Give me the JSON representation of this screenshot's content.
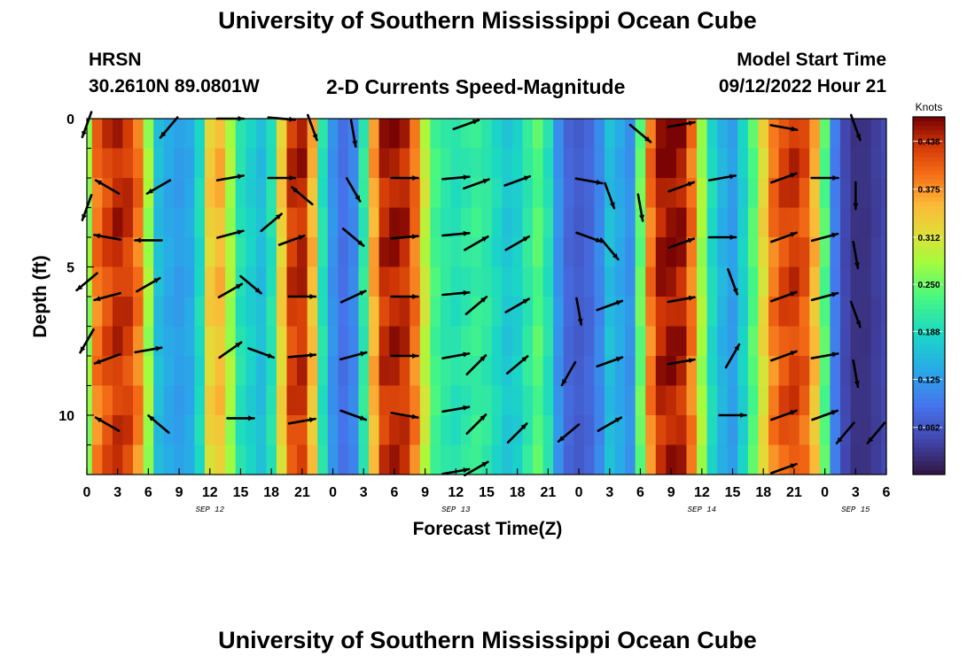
{
  "title": "University of Southern Mississippi Ocean Cube",
  "station": "HRSN",
  "location": "30.2610N  89.0801W",
  "subtitle": "2-D Currents Speed-Magnitude",
  "model_start_label": "Model Start Time",
  "model_start_value": "09/12/2022 Hour 21",
  "footer_title": "University of Southern Mississippi Ocean Cube",
  "chart_data": {
    "type": "heatmap",
    "title": "2-D Currents Speed-Magnitude",
    "xlabel": "Forecast Time(Z)",
    "ylabel": "Depth (ft)",
    "x_tick_labels": [
      "0",
      "3",
      "6",
      "9",
      "12",
      "15",
      "18",
      "21",
      "0",
      "3",
      "6",
      "9",
      "12",
      "15",
      "18",
      "21",
      "0",
      "3",
      "6",
      "9",
      "12",
      "15",
      "18",
      "21",
      "0",
      "3",
      "6"
    ],
    "date_labels": [
      {
        "label": "SEP 12",
        "hour": 12
      },
      {
        "label": "SEP 13",
        "hour": 36
      },
      {
        "label": "SEP 14",
        "hour": 60
      },
      {
        "label": "SEP 15",
        "hour": 75
      }
    ],
    "x_range_hours": [
      0,
      78
    ],
    "y_ticks": [
      "0",
      "5",
      "10"
    ],
    "y_range_ft": [
      0,
      12
    ],
    "colorbar": {
      "units": "Knots",
      "range": [
        0,
        0.47
      ],
      "tick_labels": [
        "0.438",
        "0.375",
        "0.312",
        "0.250",
        "0.188",
        "0.125",
        "0.062"
      ],
      "tick_values": [
        0.438,
        0.375,
        0.312,
        0.25,
        0.188,
        0.125,
        0.062
      ]
    },
    "speed_by_time_knots": [
      [
        0,
        0.27
      ],
      [
        1,
        0.4
      ],
      [
        2,
        0.43
      ],
      [
        3,
        0.45
      ],
      [
        4,
        0.44
      ],
      [
        5,
        0.4
      ],
      [
        6,
        0.28
      ],
      [
        7,
        0.16
      ],
      [
        8,
        0.14
      ],
      [
        9,
        0.13
      ],
      [
        10,
        0.14
      ],
      [
        11,
        0.19
      ],
      [
        12,
        0.34
      ],
      [
        13,
        0.36
      ],
      [
        14,
        0.28
      ],
      [
        15,
        0.2
      ],
      [
        16,
        0.18
      ],
      [
        17,
        0.16
      ],
      [
        18,
        0.2
      ],
      [
        19,
        0.34
      ],
      [
        20,
        0.44
      ],
      [
        21,
        0.45
      ],
      [
        22,
        0.36
      ],
      [
        23,
        0.2
      ],
      [
        24,
        0.12
      ],
      [
        25,
        0.09
      ],
      [
        26,
        0.11
      ],
      [
        27,
        0.21
      ],
      [
        28,
        0.37
      ],
      [
        29,
        0.45
      ],
      [
        30,
        0.46
      ],
      [
        31,
        0.45
      ],
      [
        32,
        0.4
      ],
      [
        33,
        0.3
      ],
      [
        34,
        0.23
      ],
      [
        35,
        0.21
      ],
      [
        36,
        0.2
      ],
      [
        37,
        0.21
      ],
      [
        38,
        0.22
      ],
      [
        39,
        0.21
      ],
      [
        40,
        0.19
      ],
      [
        41,
        0.17
      ],
      [
        42,
        0.18
      ],
      [
        43,
        0.21
      ],
      [
        44,
        0.24
      ],
      [
        45,
        0.2
      ],
      [
        46,
        0.12
      ],
      [
        47,
        0.08
      ],
      [
        48,
        0.07
      ],
      [
        49,
        0.08
      ],
      [
        50,
        0.11
      ],
      [
        51,
        0.16
      ],
      [
        52,
        0.14
      ],
      [
        53,
        0.12
      ],
      [
        54,
        0.25
      ],
      [
        55,
        0.4
      ],
      [
        56,
        0.46
      ],
      [
        57,
        0.47
      ],
      [
        58,
        0.46
      ],
      [
        59,
        0.4
      ],
      [
        60,
        0.28
      ],
      [
        61,
        0.19
      ],
      [
        62,
        0.15
      ],
      [
        63,
        0.13
      ],
      [
        64,
        0.18
      ],
      [
        65,
        0.24
      ],
      [
        66,
        0.33
      ],
      [
        67,
        0.4
      ],
      [
        68,
        0.43
      ],
      [
        69,
        0.44
      ],
      [
        70,
        0.42
      ],
      [
        71,
        0.36
      ],
      [
        72,
        0.24
      ],
      [
        73,
        0.1
      ],
      [
        74,
        0.05
      ],
      [
        75,
        0.03
      ],
      [
        76,
        0.03
      ],
      [
        77,
        0.04
      ],
      [
        78,
        0.05
      ]
    ],
    "vectors": [
      {
        "hour": 0,
        "depth": 0.2,
        "angle": 250
      },
      {
        "hour": 2,
        "depth": 2.3,
        "angle": 150
      },
      {
        "hour": 2,
        "depth": 4.0,
        "angle": 170
      },
      {
        "hour": 2,
        "depth": 6.0,
        "angle": 195
      },
      {
        "hour": 2,
        "depth": 8.1,
        "angle": 200
      },
      {
        "hour": 2,
        "depth": 10.3,
        "angle": 150
      },
      {
        "hour": 0,
        "depth": 3.0,
        "angle": 250
      },
      {
        "hour": 0,
        "depth": 5.5,
        "angle": 220
      },
      {
        "hour": 0,
        "depth": 7.5,
        "angle": 240
      },
      {
        "hour": 8,
        "depth": 0.3,
        "angle": 230
      },
      {
        "hour": 7,
        "depth": 2.3,
        "angle": 210
      },
      {
        "hour": 6,
        "depth": 4.1,
        "angle": 180
      },
      {
        "hour": 6,
        "depth": 5.6,
        "angle": 30
      },
      {
        "hour": 6,
        "depth": 7.8,
        "angle": 10
      },
      {
        "hour": 7,
        "depth": 10.3,
        "angle": 140
      },
      {
        "hour": 14,
        "depth": 0.0,
        "angle": 0
      },
      {
        "hour": 14,
        "depth": 2.0,
        "angle": 10
      },
      {
        "hour": 14,
        "depth": 3.9,
        "angle": 15
      },
      {
        "hour": 14,
        "depth": 5.8,
        "angle": 30
      },
      {
        "hour": 14,
        "depth": 7.8,
        "angle": 35
      },
      {
        "hour": 15,
        "depth": 10.1,
        "angle": 0
      },
      {
        "hour": 16,
        "depth": 5.6,
        "angle": 320
      },
      {
        "hour": 17,
        "depth": 7.9,
        "angle": 340
      },
      {
        "hour": 18,
        "depth": 3.5,
        "angle": 40
      },
      {
        "hour": 19,
        "depth": 0.0,
        "angle": 355
      },
      {
        "hour": 19,
        "depth": 2.0,
        "angle": 0
      },
      {
        "hour": 20,
        "depth": 4.1,
        "angle": 20
      },
      {
        "hour": 21,
        "depth": 6.0,
        "angle": 0
      },
      {
        "hour": 21,
        "depth": 8.0,
        "angle": 5
      },
      {
        "hour": 21,
        "depth": 10.2,
        "angle": 10
      },
      {
        "hour": 22,
        "depth": 0.3,
        "angle": 290
      },
      {
        "hour": 21,
        "depth": 2.6,
        "angle": 140
      },
      {
        "hour": 26,
        "depth": 0.5,
        "angle": 280
      },
      {
        "hour": 26,
        "depth": 2.4,
        "angle": 300
      },
      {
        "hour": 26,
        "depth": 4.0,
        "angle": 320
      },
      {
        "hour": 26,
        "depth": 6.0,
        "angle": 25
      },
      {
        "hour": 26,
        "depth": 8.0,
        "angle": 15
      },
      {
        "hour": 26,
        "depth": 10.0,
        "angle": 340
      },
      {
        "hour": 31,
        "depth": 2.0,
        "angle": 0
      },
      {
        "hour": 31,
        "depth": 4.0,
        "angle": 5
      },
      {
        "hour": 31,
        "depth": 6.0,
        "angle": 0
      },
      {
        "hour": 31,
        "depth": 8.0,
        "angle": 0
      },
      {
        "hour": 31,
        "depth": 10.0,
        "angle": 350
      },
      {
        "hour": 36,
        "depth": 2.0,
        "angle": 5
      },
      {
        "hour": 36,
        "depth": 3.9,
        "angle": 5
      },
      {
        "hour": 36,
        "depth": 5.9,
        "angle": 5
      },
      {
        "hour": 36,
        "depth": 8.0,
        "angle": 10
      },
      {
        "hour": 36,
        "depth": 9.8,
        "angle": 10
      },
      {
        "hour": 36,
        "depth": 11.9,
        "angle": 10
      },
      {
        "hour": 37,
        "depth": 0.2,
        "angle": 20
      },
      {
        "hour": 38,
        "depth": 2.2,
        "angle": 20
      },
      {
        "hour": 38,
        "depth": 4.2,
        "angle": 30
      },
      {
        "hour": 38,
        "depth": 6.3,
        "angle": 40
      },
      {
        "hour": 38,
        "depth": 8.3,
        "angle": 45
      },
      {
        "hour": 38,
        "depth": 10.3,
        "angle": 45
      },
      {
        "hour": 38,
        "depth": 11.8,
        "angle": 30
      },
      {
        "hour": 42,
        "depth": 2.1,
        "angle": 20
      },
      {
        "hour": 42,
        "depth": 4.2,
        "angle": 30
      },
      {
        "hour": 42,
        "depth": 6.3,
        "angle": 30
      },
      {
        "hour": 42,
        "depth": 8.3,
        "angle": 40
      },
      {
        "hour": 42,
        "depth": 10.6,
        "angle": 45
      },
      {
        "hour": 49,
        "depth": 2.1,
        "angle": 350
      },
      {
        "hour": 49,
        "depth": 4.0,
        "angle": 340
      },
      {
        "hour": 48,
        "depth": 6.5,
        "angle": 280
      },
      {
        "hour": 47,
        "depth": 8.6,
        "angle": 240
      },
      {
        "hour": 47,
        "depth": 10.6,
        "angle": 220
      },
      {
        "hour": 51,
        "depth": 2.6,
        "angle": 290
      },
      {
        "hour": 51,
        "depth": 4.4,
        "angle": 310
      },
      {
        "hour": 51,
        "depth": 6.3,
        "angle": 20
      },
      {
        "hour": 51,
        "depth": 8.2,
        "angle": 20
      },
      {
        "hour": 51,
        "depth": 10.3,
        "angle": 30
      },
      {
        "hour": 54,
        "depth": 0.5,
        "angle": 320
      },
      {
        "hour": 54,
        "depth": 3.0,
        "angle": 280
      },
      {
        "hour": 58,
        "depth": 2.3,
        "angle": 20
      },
      {
        "hour": 58,
        "depth": 4.2,
        "angle": 20
      },
      {
        "hour": 58,
        "depth": 6.1,
        "angle": 10
      },
      {
        "hour": 58,
        "depth": 8.2,
        "angle": 10
      },
      {
        "hour": 58,
        "depth": 0.2,
        "angle": 10
      },
      {
        "hour": 62,
        "depth": 2.0,
        "angle": 10
      },
      {
        "hour": 62,
        "depth": 4.0,
        "angle": 0
      },
      {
        "hour": 63,
        "depth": 5.5,
        "angle": 290
      },
      {
        "hour": 63,
        "depth": 8.0,
        "angle": 60
      },
      {
        "hour": 63,
        "depth": 10.0,
        "angle": 0
      },
      {
        "hour": 68,
        "depth": 0.3,
        "angle": 350
      },
      {
        "hour": 68,
        "depth": 2.0,
        "angle": 20
      },
      {
        "hour": 68,
        "depth": 4.0,
        "angle": 20
      },
      {
        "hour": 68,
        "depth": 6.0,
        "angle": 20
      },
      {
        "hour": 68,
        "depth": 8.0,
        "angle": 20
      },
      {
        "hour": 68,
        "depth": 10.0,
        "angle": 20
      },
      {
        "hour": 68,
        "depth": 11.8,
        "angle": 20
      },
      {
        "hour": 72,
        "depth": 2.0,
        "angle": 0
      },
      {
        "hour": 72,
        "depth": 4.0,
        "angle": 15
      },
      {
        "hour": 72,
        "depth": 6.0,
        "angle": 15
      },
      {
        "hour": 72,
        "depth": 8.0,
        "angle": 10
      },
      {
        "hour": 72,
        "depth": 10.0,
        "angle": 20
      },
      {
        "hour": 75,
        "depth": 0.3,
        "angle": 290
      },
      {
        "hour": 75,
        "depth": 2.6,
        "angle": 270
      },
      {
        "hour": 75,
        "depth": 4.6,
        "angle": 280
      },
      {
        "hour": 75,
        "depth": 6.6,
        "angle": 290
      },
      {
        "hour": 75,
        "depth": 8.6,
        "angle": 280
      },
      {
        "hour": 74,
        "depth": 10.6,
        "angle": 230
      },
      {
        "hour": 77,
        "depth": 10.6,
        "angle": 230
      }
    ]
  }
}
